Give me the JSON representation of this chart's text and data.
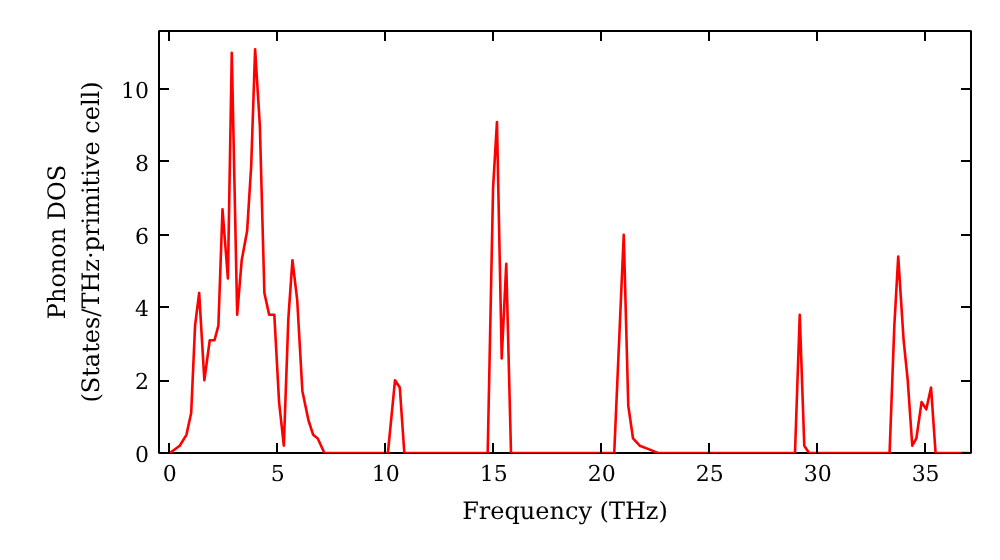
{
  "chart_data": {
    "type": "line",
    "xlabel": "Frequency (THz)",
    "ylabel": "Phonon DOS\n(States/THz·primitive cell)",
    "x": [
      0,
      0.46,
      0.77,
      0.99,
      1.17,
      1.36,
      1.6,
      1.85,
      2.07,
      2.25,
      2.44,
      2.69,
      2.87,
      3.12,
      3.33,
      3.58,
      3.77,
      3.95,
      4.17,
      4.38,
      4.6,
      4.84,
      5.06,
      5.28,
      5.49,
      5.68,
      5.9,
      6.14,
      6.42,
      6.64,
      6.85,
      7.16,
      10.1,
      10.43,
      10.65,
      10.86,
      14.72,
      14.97,
      15.15,
      15.37,
      15.58,
      15.8,
      20.58,
      21.02,
      21.23,
      21.45,
      21.76,
      22.2,
      22.6,
      28.95,
      29.17,
      29.38,
      29.6,
      33.33,
      33.55,
      33.73,
      33.98,
      34.17,
      34.38,
      34.57,
      34.81,
      35.03,
      35.25,
      35.46,
      37.0
    ],
    "series": [
      {
        "color": "#ff0000",
        "values": [
          0,
          0.2,
          0.5,
          1.1,
          3.5,
          4.4,
          2.0,
          3.1,
          3.1,
          3.5,
          6.7,
          4.8,
          11.0,
          3.8,
          5.3,
          6.1,
          7.9,
          11.1,
          9.0,
          4.4,
          3.8,
          3.8,
          1.4,
          0.2,
          3.7,
          5.3,
          4.2,
          1.7,
          0.9,
          0.5,
          0.4,
          0,
          0,
          2.0,
          1.8,
          0,
          0,
          7.3,
          9.1,
          2.6,
          5.2,
          0,
          0,
          6.0,
          1.3,
          0.4,
          0.2,
          0.1,
          0,
          0,
          3.8,
          0.2,
          0,
          0,
          3.5,
          5.4,
          3.1,
          2.0,
          0.2,
          0.4,
          1.4,
          1.2,
          1.8,
          0,
          0
        ]
      }
    ],
    "xlim": [
      -0.5,
      37.1
    ],
    "ylim": [
      0,
      11.6
    ],
    "xticks": [
      0,
      5,
      10,
      15,
      20,
      25,
      30,
      35
    ],
    "yticks": [
      0,
      2,
      4,
      6,
      8,
      10
    ],
    "line_style": "solid"
  }
}
